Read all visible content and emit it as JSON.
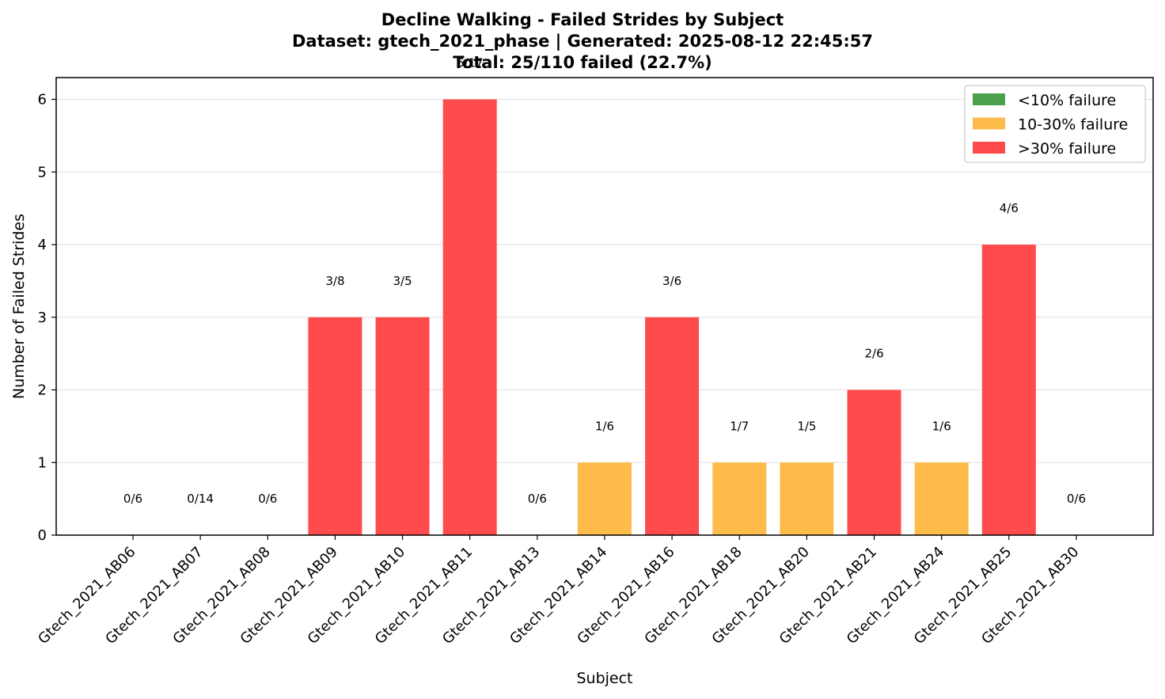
{
  "chart_data": {
    "type": "bar",
    "title": "Decline Walking - Failed Strides by Subject",
    "subtitle": "Dataset: gtech_2021_phase | Generated: 2025-08-12 22:45:57",
    "summary": "Total: 25/110 failed (22.7%)",
    "xlabel": "Subject",
    "ylabel": "Number of Failed Strides",
    "ylim": [
      0,
      6.3
    ],
    "yticks": [
      0,
      1,
      2,
      3,
      4,
      5,
      6
    ],
    "grid": "y",
    "legend_position": "top-right",
    "categories": [
      "Gtech_2021_AB06",
      "Gtech_2021_AB07",
      "Gtech_2021_AB08",
      "Gtech_2021_AB09",
      "Gtech_2021_AB10",
      "Gtech_2021_AB11",
      "Gtech_2021_AB13",
      "Gtech_2021_AB14",
      "Gtech_2021_AB16",
      "Gtech_2021_AB18",
      "Gtech_2021_AB20",
      "Gtech_2021_AB21",
      "Gtech_2021_AB24",
      "Gtech_2021_AB25",
      "Gtech_2021_AB30"
    ],
    "values": [
      0,
      0,
      0,
      3,
      3,
      6,
      0,
      1,
      3,
      1,
      1,
      2,
      1,
      4,
      0
    ],
    "bar_labels": [
      "0/6",
      "0/14",
      "0/6",
      "3/8",
      "3/5",
      "6/17",
      "0/6",
      "1/6",
      "3/6",
      "1/7",
      "1/5",
      "2/6",
      "1/6",
      "4/6",
      "0/6"
    ],
    "failure_class": [
      "low",
      "low",
      "low",
      "high",
      "high",
      "high",
      "low",
      "mid",
      "high",
      "mid",
      "mid",
      "high",
      "mid",
      "high",
      "low"
    ],
    "legend": [
      {
        "key": "low",
        "label": "<10% failure",
        "color": "#4c9f4c"
      },
      {
        "key": "mid",
        "label": "10-30% failure",
        "color": "#fdbb4b"
      },
      {
        "key": "high",
        "label": ">30% failure",
        "color": "#ff4b4b"
      }
    ]
  }
}
